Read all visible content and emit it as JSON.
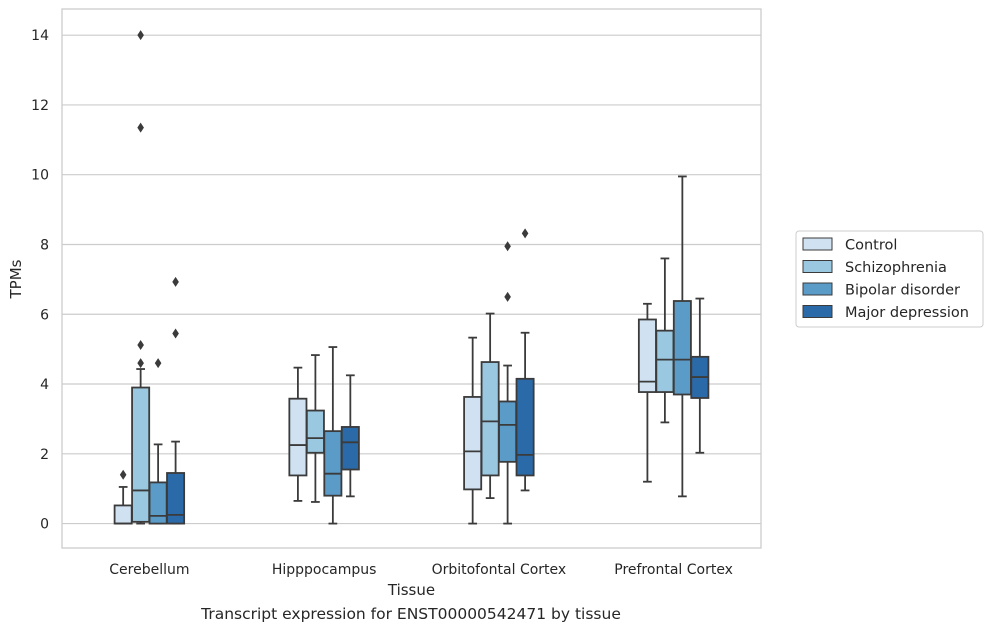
{
  "caption": "Transcript expression for ENST00000542471 by tissue",
  "chart_data": {
    "type": "box",
    "xlabel": "Tissue",
    "ylabel": "TPMs",
    "ylim": [
      -0.7,
      14.75
    ],
    "yticks": [
      0,
      2,
      4,
      6,
      8,
      10,
      12,
      14
    ],
    "grid": "horizontal",
    "legend_position": "right",
    "categories": [
      "Cerebellum",
      "Hipppocampus",
      "Orbitofontal Cortex",
      "Prefrontal Cortex"
    ],
    "series": [
      {
        "name": "Control",
        "color": "#d0e1f2",
        "boxes": [
          {
            "whislo": 0.0,
            "q1": 0.0,
            "med": 0.0,
            "q3": 0.52,
            "whishi": 1.05,
            "fliers": [
              1.4
            ]
          },
          {
            "whislo": 0.65,
            "q1": 1.38,
            "med": 2.25,
            "q3": 3.58,
            "whishi": 4.47,
            "fliers": []
          },
          {
            "whislo": 0.0,
            "q1": 0.98,
            "med": 2.07,
            "q3": 3.63,
            "whishi": 5.33,
            "fliers": []
          },
          {
            "whislo": 1.2,
            "q1": 3.77,
            "med": 4.07,
            "q3": 5.85,
            "whishi": 6.3,
            "fliers": []
          }
        ]
      },
      {
        "name": "Schizophrenia",
        "color": "#9ac8e0",
        "boxes": [
          {
            "whislo": 0.0,
            "q1": 0.05,
            "med": 0.95,
            "q3": 3.9,
            "whishi": 4.43,
            "fliers": [
              4.6,
              5.12,
              11.35,
              14.0
            ]
          },
          {
            "whislo": 0.62,
            "q1": 2.03,
            "med": 2.45,
            "q3": 3.24,
            "whishi": 4.83,
            "fliers": []
          },
          {
            "whislo": 0.73,
            "q1": 1.38,
            "med": 2.93,
            "q3": 4.63,
            "whishi": 6.02,
            "fliers": []
          },
          {
            "whislo": 2.9,
            "q1": 3.77,
            "med": 4.7,
            "q3": 5.53,
            "whishi": 7.6,
            "fliers": []
          }
        ]
      },
      {
        "name": "Bipolar disorder",
        "color": "#5b9bc8",
        "boxes": [
          {
            "whislo": 0.0,
            "q1": 0.0,
            "med": 0.22,
            "q3": 1.18,
            "whishi": 2.27,
            "fliers": [
              4.6
            ]
          },
          {
            "whislo": 0.0,
            "q1": 0.8,
            "med": 1.43,
            "q3": 2.65,
            "whishi": 5.06,
            "fliers": []
          },
          {
            "whislo": 0.0,
            "q1": 1.77,
            "med": 2.83,
            "q3": 3.5,
            "whishi": 4.53,
            "fliers": [
              6.5,
              7.95
            ]
          },
          {
            "whislo": 0.78,
            "q1": 3.7,
            "med": 4.7,
            "q3": 6.38,
            "whishi": 9.95,
            "fliers": []
          }
        ]
      },
      {
        "name": "Major depression",
        "color": "#2b6aa9",
        "boxes": [
          {
            "whislo": 0.0,
            "q1": 0.0,
            "med": 0.25,
            "q3": 1.45,
            "whishi": 2.35,
            "fliers": [
              5.45,
              6.93
            ]
          },
          {
            "whislo": 0.78,
            "q1": 1.55,
            "med": 2.33,
            "q3": 2.77,
            "whishi": 4.25,
            "fliers": []
          },
          {
            "whislo": 0.95,
            "q1": 1.38,
            "med": 1.97,
            "q3": 4.15,
            "whishi": 5.47,
            "fliers": [
              8.32
            ]
          },
          {
            "whislo": 2.03,
            "q1": 3.6,
            "med": 4.2,
            "q3": 4.78,
            "whishi": 6.45,
            "fliers": []
          }
        ]
      }
    ]
  }
}
